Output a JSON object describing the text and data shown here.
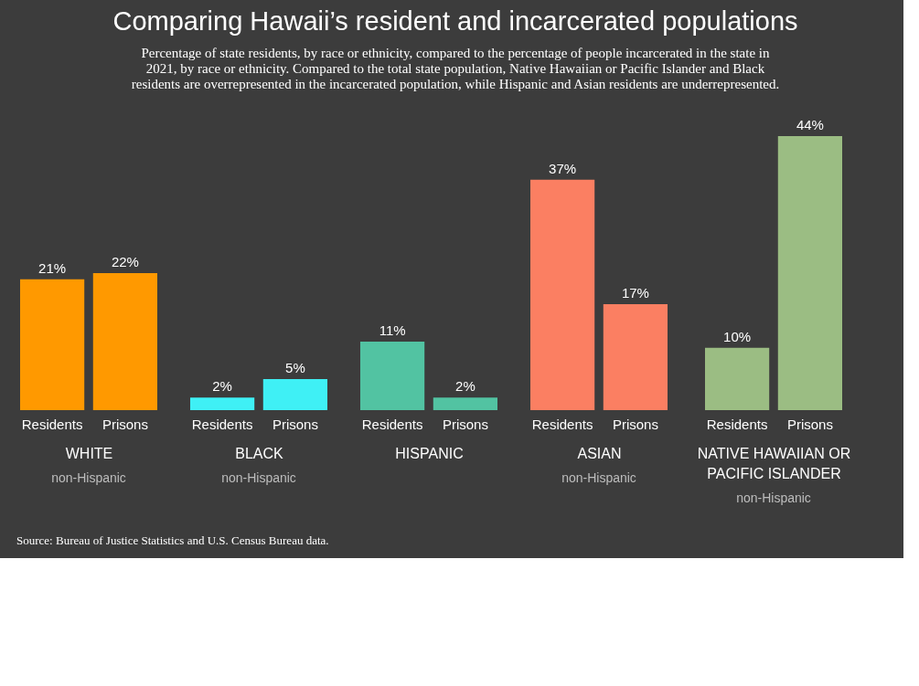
{
  "chart_data": [
    {
      "type": "bar",
      "title": "Comparing Hawaii’s resident and incarcerated populations",
      "subtitle": "Percentage of state residents, by race or ethnicity, compared to the percentage of people incarcerated in the state in 2021, by race or ethnicity. Compared to the total state population, Native Hawaiian or Pacific Islander and Black residents are overrepresented in the incarcerated population, while Hispanic and Asian residents are underrepresented.",
      "xlabel": "WHITE",
      "annotations": [
        "non-Hispanic"
      ],
      "categories": [
        "Residents",
        "Prisons"
      ],
      "values": [
        21,
        22
      ],
      "value_labels": [
        "21%",
        "22%"
      ],
      "colors": [
        "#ff9900",
        "#ff9900"
      ]
    },
    {
      "type": "bar",
      "xlabel": "BLACK",
      "annotations": [
        "non-Hispanic"
      ],
      "categories": [
        "Residents",
        "Prisons"
      ],
      "values": [
        2,
        5
      ],
      "value_labels": [
        "2%",
        "5%"
      ],
      "colors": [
        "#3ff0f5",
        "#3ff0f5"
      ]
    },
    {
      "type": "bar",
      "xlabel": "HISPANIC",
      "categories": [
        "Residents",
        "Prisons"
      ],
      "values": [
        11,
        2
      ],
      "value_labels": [
        "11%",
        "2%"
      ],
      "colors": [
        "#52c3a2",
        "#52c3a2"
      ]
    },
    {
      "type": "bar",
      "xlabel": "ASIAN",
      "annotations": [
        "non-Hispanic"
      ],
      "categories": [
        "Residents",
        "Prisons"
      ],
      "values": [
        37,
        17
      ],
      "value_labels": [
        "37%",
        "17%"
      ],
      "colors": [
        "#fb7f62",
        "#fb7f62"
      ]
    },
    {
      "type": "bar",
      "xlabel": "NATIVE HAWAIIAN OR PACIFIC ISLANDER",
      "annotations": [
        "non-Hispanic",
        "Source: Bureau of Justice Statistics and U.S. Census Bureau data."
      ],
      "categories": [
        "Residents",
        "Prisons"
      ],
      "values": [
        10,
        44
      ],
      "value_labels": [
        "10%",
        "44%"
      ],
      "colors": [
        "#9bbd83",
        "#9bbd83"
      ]
    }
  ]
}
